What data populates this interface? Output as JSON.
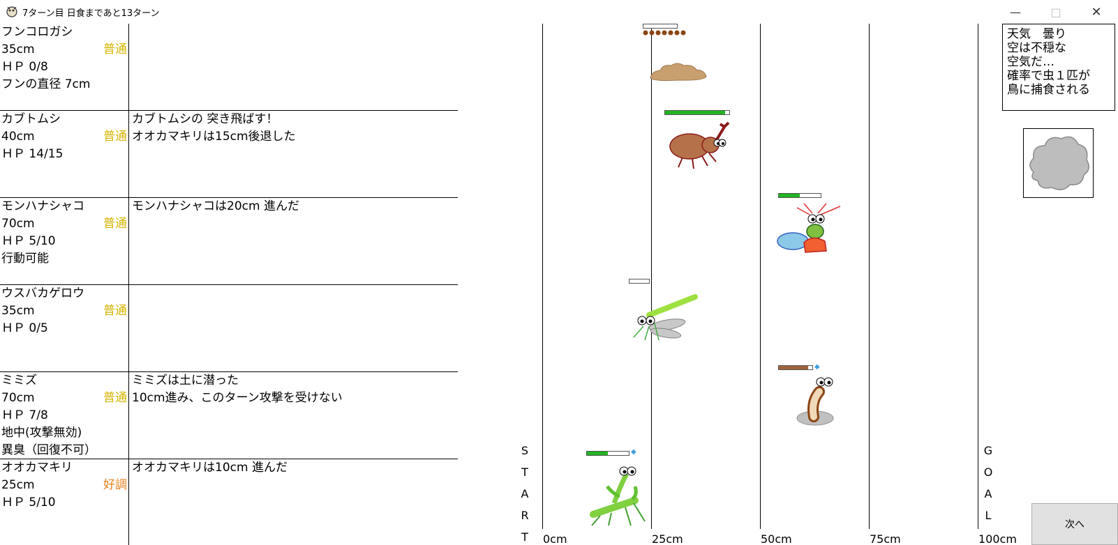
{
  "window": {
    "title": "7ターン目 日食まであと13ターン",
    "minimize": "—",
    "maximize": "□",
    "close": "✕"
  },
  "insects": [
    {
      "name": "フンコロガシ",
      "pos": "35cm",
      "condition": "普通",
      "hp": "ＨＰ 0/8",
      "extra": [
        "フンの直径 7cm"
      ],
      "messages": []
    },
    {
      "name": "カブトムシ",
      "pos": "40cm",
      "condition": "普通",
      "hp": "ＨＰ 14/15",
      "extra": [],
      "messages": [
        "カブトムシの 突き飛ばす！",
        "オオカマキリは15cm後退した"
      ]
    },
    {
      "name": "モンハナシャコ",
      "pos": "70cm",
      "condition": "普通",
      "hp": "ＨＰ 5/10",
      "extra": [
        "行動可能"
      ],
      "messages": [
        "モンハナシャコは20cm 進んだ"
      ]
    },
    {
      "name": "ウスバカゲロウ",
      "pos": "35cm",
      "condition": "普通",
      "hp": "ＨＰ 0/5",
      "extra": [],
      "messages": []
    },
    {
      "name": "ミミズ",
      "pos": "70cm",
      "condition": "普通",
      "hp": "ＨＰ 7/8",
      "extra": [
        "地中(攻撃無効)",
        "異臭（回復不可）"
      ],
      "messages": [
        "ミミズは土に潜った",
        "10cm進み、このターン攻撃を受けない"
      ]
    },
    {
      "name": "オオカマキリ",
      "pos": "25cm",
      "condition": "好調",
      "hp": "ＨＰ 5/10",
      "extra": [],
      "messages": [
        "オオカマキリは10cm 進んだ"
      ]
    }
  ],
  "field": {
    "ticks": [
      "0cm",
      "25cm",
      "50cm",
      "75cm",
      "100cm"
    ],
    "start_letters": [
      "S",
      "T",
      "A",
      "R",
      "T"
    ],
    "goal_letters": [
      "G",
      "O",
      "A",
      "L"
    ],
    "hp_levels": {
      "dungbeetle": 0.0,
      "beetle": 0.93,
      "mantisshrimp": 0.5,
      "antlion": 0.0,
      "earthworm": 0.875,
      "mantis": 0.5
    },
    "colors": {
      "hp_green": "#22b422",
      "hp_brown": "#a0643c",
      "dung_dots": "#8b4513"
    }
  },
  "weather": {
    "lines": [
      "天気　曇り",
      "空は不穏な",
      "空気だ…"
    ],
    "effect": [
      "確率で虫１匹が",
      "鳥に捕食される"
    ],
    "icon": "cloud-icon"
  },
  "next_button": "次へ"
}
